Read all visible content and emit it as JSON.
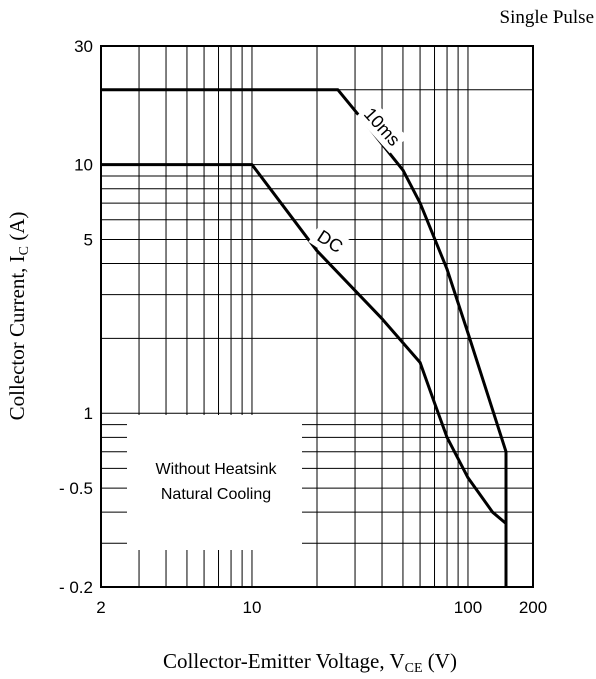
{
  "chart_data": {
    "type": "line",
    "title": "Single Pulse",
    "xlabel": {
      "main": "Collector-Emitter Voltage, V",
      "sub": "CE",
      "unit": " (V)"
    },
    "ylabel": {
      "main": "Collector Current, I",
      "sub": "C",
      "unit": " (A)"
    },
    "x_scale": "log",
    "y_scale": "log",
    "xlim": [
      2,
      200
    ],
    "ylim": [
      0.2,
      30
    ],
    "grid": true,
    "x_ticks": [
      {
        "value": 2,
        "label": "2"
      },
      {
        "value": 10,
        "label": "10"
      },
      {
        "value": 100,
        "label": "100"
      },
      {
        "value": 200,
        "label": "200"
      }
    ],
    "y_ticks": [
      {
        "value": 0.2,
        "label": "- 0.2"
      },
      {
        "value": 0.5,
        "label": "- 0.5"
      },
      {
        "value": 1,
        "label": "1"
      },
      {
        "value": 5,
        "label": "5"
      },
      {
        "value": 10,
        "label": "10"
      },
      {
        "value": 30,
        "label": "30"
      }
    ],
    "series": [
      {
        "name": "10ms",
        "x": [
          2,
          25,
          35,
          50,
          60,
          80,
          100,
          150,
          150
        ],
        "y": [
          20,
          20,
          14,
          9.5,
          7,
          3.8,
          2.1,
          0.7,
          0.2
        ]
      },
      {
        "name": "DC",
        "x": [
          2,
          10,
          20,
          40,
          60,
          70,
          80,
          100,
          130,
          150,
          150
        ],
        "y": [
          10,
          10,
          4.5,
          2.4,
          1.6,
          1.1,
          0.8,
          0.55,
          0.4,
          0.36,
          0.2
        ]
      }
    ],
    "annotations": [
      {
        "text_lines": [
          "Without Heatsink",
          "Natural Cooling"
        ]
      }
    ]
  }
}
